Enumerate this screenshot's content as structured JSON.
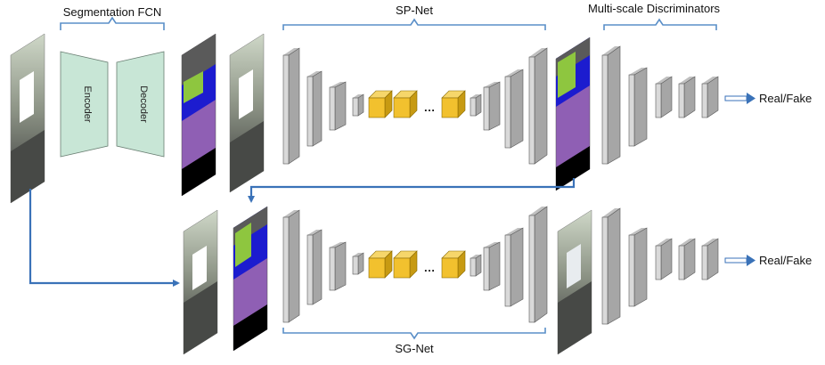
{
  "labels": {
    "segmentation_fcn": "Segmentation FCN",
    "encoder": "Encoder",
    "decoder": "Decoder",
    "sp_net": "SP-Net",
    "sg_net": "SG-Net",
    "multiscale_discriminators": "Multi-scale Discriminators",
    "real_fake_top": "Real/Fake",
    "real_fake_bottom": "Real/Fake",
    "ellipsis_top": "…",
    "ellipsis_bottom": "…"
  },
  "colors": {
    "fcn_block": "#c8e6d6",
    "layer_face": "#d9d9d9",
    "layer_side": "#a6a6a6",
    "res_face": "#f2c12e",
    "res_side": "#c79a12",
    "arrow": "#3a72b8",
    "seg_purple": "#8f5fb4",
    "seg_blue": "#1c1ccf",
    "seg_green": "#8ec63f"
  }
}
